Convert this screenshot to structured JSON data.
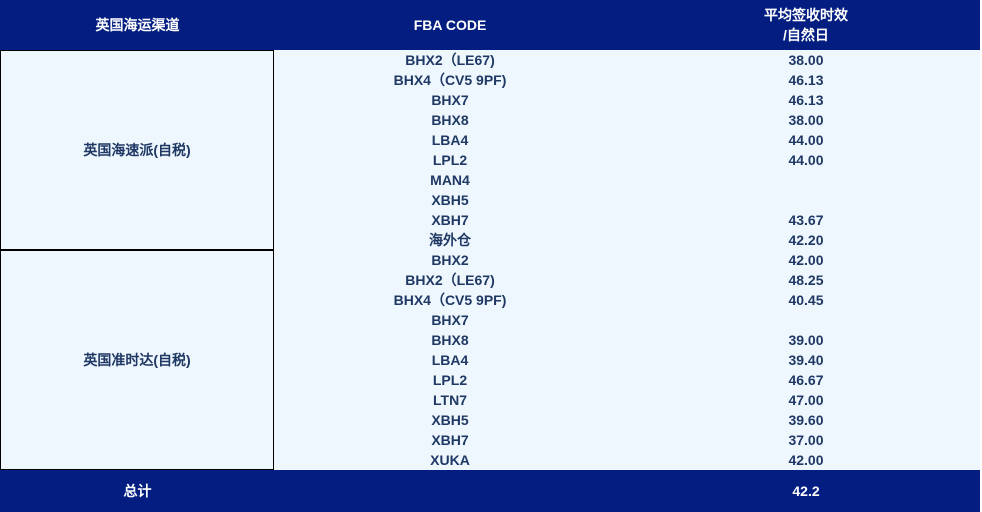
{
  "header": {
    "channel": "英国海运渠道",
    "code": "FBA CODE",
    "days_line1": "平均签收时效",
    "days_line2": "/自然日"
  },
  "groups": [
    {
      "name": "英国海速派(自税)",
      "rows": [
        {
          "code": "BHX2（LE67)",
          "value": "38.00"
        },
        {
          "code": "BHX4（CV5 9PF)",
          "value": "46.13"
        },
        {
          "code": "BHX7",
          "value": "46.13"
        },
        {
          "code": "BHX8",
          "value": "38.00"
        },
        {
          "code": "LBA4",
          "value": "44.00"
        },
        {
          "code": "LPL2",
          "value": "44.00"
        },
        {
          "code": "MAN4",
          "value": ""
        },
        {
          "code": "XBH5",
          "value": ""
        },
        {
          "code": "XBH7",
          "value": "43.67"
        },
        {
          "code": "海外仓",
          "value": "42.20"
        }
      ]
    },
    {
      "name": "英国准时达(自税)",
      "rows": [
        {
          "code": "BHX2",
          "value": "42.00"
        },
        {
          "code": "BHX2（LE67)",
          "value": "48.25"
        },
        {
          "code": "BHX4（CV5 9PF)",
          "value": "40.45"
        },
        {
          "code": "BHX7",
          "value": ""
        },
        {
          "code": "BHX8",
          "value": "39.00"
        },
        {
          "code": "LBA4",
          "value": "39.40"
        },
        {
          "code": "LPL2",
          "value": "46.67"
        },
        {
          "code": "LTN7",
          "value": "47.00"
        },
        {
          "code": "XBH5",
          "value": "39.60"
        },
        {
          "code": "XBH7",
          "value": "37.00"
        },
        {
          "code": "XUKA",
          "value": "42.00"
        }
      ]
    }
  ],
  "footer": {
    "label": "总计",
    "value": "42.2"
  },
  "colors": {
    "header_bg": "#031e80",
    "body_bg": "#eef7fd",
    "text": "#1f3864"
  }
}
